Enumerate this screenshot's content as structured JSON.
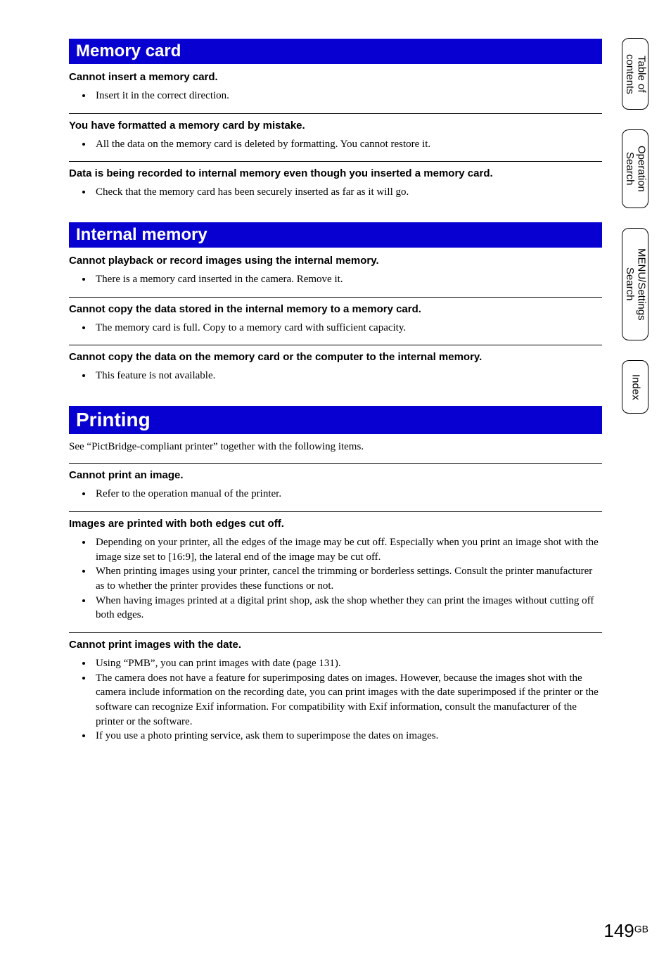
{
  "sideTabs": [
    {
      "label": "Table of\ncontents"
    },
    {
      "label": "Operation\nSearch"
    },
    {
      "label": "MENU/Settings\nSearch"
    },
    {
      "label": "Index"
    }
  ],
  "sections": [
    {
      "title": "Memory card",
      "size": "small",
      "intro": null,
      "issues": [
        {
          "heading": "Cannot insert a memory card.",
          "bullets": [
            "Insert it in the correct direction."
          ]
        },
        {
          "heading": "You have formatted a memory card by mistake.",
          "bullets": [
            "All the data on the memory card is deleted by formatting. You cannot restore it."
          ]
        },
        {
          "heading": "Data is being recorded to internal memory even though you inserted a memory card.",
          "bullets": [
            "Check that the memory card has been securely inserted as far as it will go."
          ]
        }
      ]
    },
    {
      "title": "Internal memory",
      "size": "small",
      "intro": null,
      "issues": [
        {
          "heading": "Cannot playback or record images using the internal memory.",
          "bullets": [
            "There is a memory card inserted in the camera. Remove it."
          ]
        },
        {
          "heading": "Cannot copy the data stored in the internal memory to a memory card.",
          "bullets": [
            "The memory card is full. Copy to a memory card with sufficient capacity."
          ]
        },
        {
          "heading": "Cannot copy the data on the memory card or the computer to the internal memory.",
          "bullets": [
            "This feature is not available."
          ]
        }
      ]
    },
    {
      "title": "Printing",
      "size": "large",
      "intro": "See “PictBridge-compliant printer” together with the following items.",
      "issues": [
        {
          "heading": "Cannot print an image.",
          "bullets": [
            "Refer to the operation manual of the printer."
          ]
        },
        {
          "heading": "Images are printed with both edges cut off.",
          "bullets": [
            "Depending on your printer, all the edges of the image may be cut off. Especially when you print an image shot with the image size set to [16:9], the lateral end of the image may be cut off.",
            "When printing images using your printer, cancel the trimming or borderless settings. Consult the printer manufacturer as to whether the printer provides these functions or not.",
            "When having images printed at a digital print shop, ask the shop whether they can print the images without cutting off both edges."
          ]
        },
        {
          "heading": "Cannot print images with the date.",
          "bullets": [
            "Using “PMB”, you can print images with date (page 131).",
            "The camera does not have a feature for superimposing dates on images. However, because the images shot with the camera include information on the recording date, you can print images with the date superimposed if the printer or the software can recognize Exif information. For compatibility with Exif information, consult the manufacturer of the printer or the software.",
            "If you use a photo printing service, ask them to superimpose the dates on images."
          ]
        }
      ]
    }
  ],
  "pageNumber": {
    "num": "149",
    "suffix": "GB"
  },
  "colors": {
    "bar": "#0800d0",
    "text": "#000000",
    "bg": "#ffffff"
  }
}
